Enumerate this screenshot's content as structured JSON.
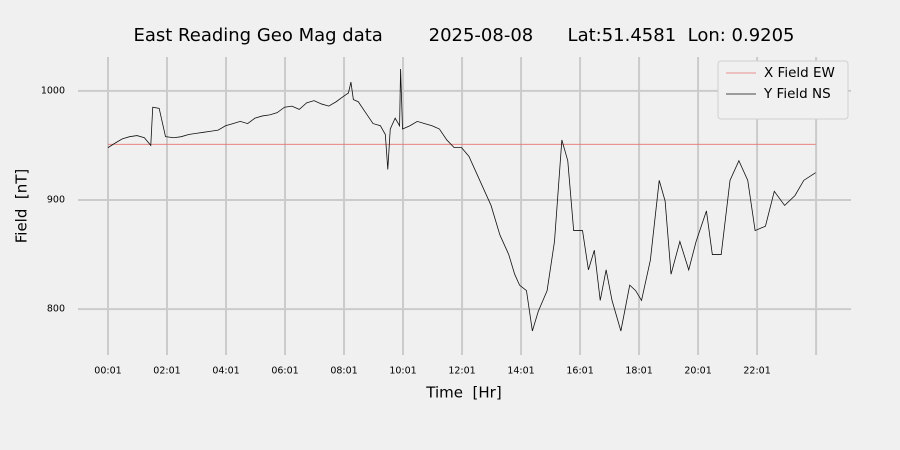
{
  "chart_data": {
    "type": "line",
    "title": "East Reading Geo Mag data        2025-08-08      Lat:51.4581  Lon: 0.9205",
    "xlabel": "Time  [Hr]",
    "ylabel": "Field  [nT]",
    "x": [
      1,
      15,
      30,
      45,
      60,
      75,
      88,
      92,
      105,
      118,
      135,
      150,
      165,
      180,
      195,
      210,
      225,
      240,
      255,
      270,
      285,
      300,
      315,
      330,
      345,
      360,
      375,
      390,
      405,
      420,
      435,
      450,
      465,
      480,
      490,
      495,
      500,
      510,
      525,
      540,
      555,
      565,
      570,
      575,
      585,
      594,
      596,
      600,
      615,
      630,
      645,
      660,
      675,
      690,
      705,
      720,
      735,
      750,
      765,
      780,
      798,
      816,
      828,
      838,
      852,
      864,
      876,
      894,
      909,
      924,
      936,
      948,
      966,
      978,
      990,
      1002,
      1014,
      1026,
      1044,
      1062,
      1074,
      1086,
      1104,
      1122,
      1134,
      1146,
      1164,
      1182,
      1197,
      1218,
      1230,
      1248,
      1266,
      1284,
      1302,
      1317,
      1338,
      1356,
      1377,
      1398,
      1416,
      1440
    ],
    "series": [
      {
        "name": "X Field EW",
        "color": "#e8736f",
        "width": 0.8,
        "values": [
          951,
          951,
          951,
          951,
          951,
          951,
          951,
          951,
          951,
          951,
          951,
          951,
          951,
          951,
          951,
          951,
          951,
          951,
          951,
          951,
          951,
          951,
          951,
          951,
          951,
          951,
          951,
          951,
          951,
          951,
          951,
          951,
          951,
          951,
          951,
          951,
          951,
          951,
          951,
          951,
          951,
          951,
          951,
          951,
          951,
          951,
          951,
          951,
          951,
          951,
          951,
          951,
          951,
          951,
          951,
          951,
          951,
          951,
          951,
          951,
          951,
          951,
          951,
          951,
          951,
          951,
          951,
          951,
          951,
          951,
          951,
          951,
          951,
          951,
          951,
          951,
          951,
          951,
          951,
          951,
          951,
          951,
          951,
          951,
          951,
          951,
          951,
          951,
          951,
          951,
          951,
          951,
          951,
          951,
          951,
          951,
          951,
          951,
          951,
          951,
          951,
          951
        ]
      },
      {
        "name": "Y Field NS",
        "color": "#111111",
        "width": 0.8,
        "values": [
          948,
          952,
          956,
          958,
          959,
          957,
          950,
          985,
          984,
          958,
          957,
          958,
          960,
          961,
          962,
          963,
          964,
          968,
          970,
          972,
          970,
          975,
          977,
          978,
          980,
          985,
          986,
          983,
          989,
          991,
          988,
          986,
          990,
          995,
          998,
          1008,
          992,
          990,
          980,
          970,
          968,
          960,
          928,
          965,
          975,
          968,
          1020,
          965,
          968,
          972,
          970,
          968,
          965,
          955,
          948,
          948,
          940,
          925,
          910,
          895,
          868,
          850,
          832,
          822,
          817,
          780,
          798,
          817,
          862,
          955,
          936,
          872,
          872,
          836,
          854,
          808,
          836,
          808,
          780,
          822,
          817,
          808,
          845,
          918,
          899,
          832,
          862,
          836,
          862,
          890,
          850,
          850,
          918,
          936,
          918,
          872,
          876,
          908,
          895,
          904,
          918,
          925
        ]
      }
    ],
    "xlim": [
      -60,
      1512
    ],
    "xticks": [
      {
        "value": 1,
        "label": "00:01"
      },
      {
        "value": 121,
        "label": "02:01"
      },
      {
        "value": 241,
        "label": "04:01"
      },
      {
        "value": 361,
        "label": "06:01"
      },
      {
        "value": 481,
        "label": "08:01"
      },
      {
        "value": 601,
        "label": "10:01"
      },
      {
        "value": 721,
        "label": "12:01"
      },
      {
        "value": 841,
        "label": "14:01"
      },
      {
        "value": 961,
        "label": "16:01"
      },
      {
        "value": 1081,
        "label": "18:01"
      },
      {
        "value": 1201,
        "label": "20:01"
      },
      {
        "value": 1321,
        "label": "22:01"
      },
      {
        "value": 1441,
        "label": null
      }
    ],
    "ylim": [
      758,
      1031
    ],
    "yticks": [
      800,
      900,
      1000
    ],
    "grid": true,
    "legend": "upper right"
  }
}
